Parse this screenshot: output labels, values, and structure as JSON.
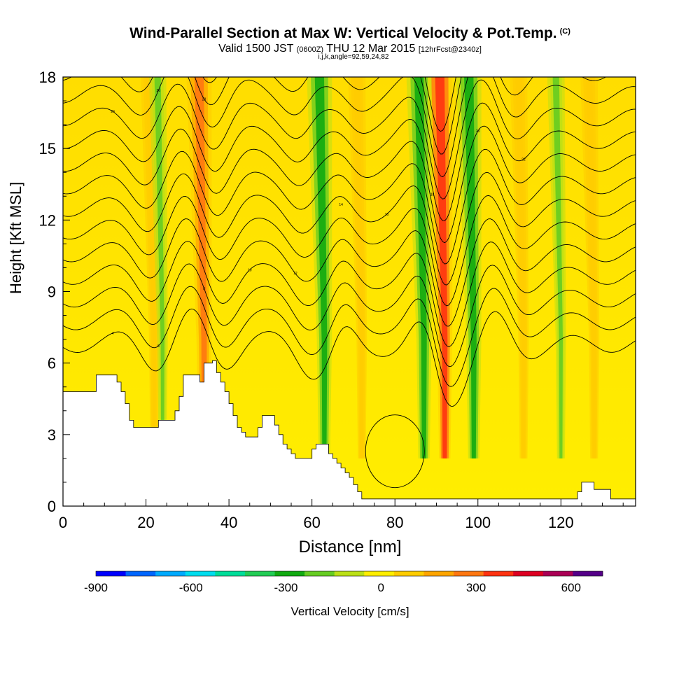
{
  "header": {
    "title": "Wind-Parallel Section at Max W: Vertical Velocity & Pot.Temp.",
    "copyright": "(C)",
    "valid_prefix": "Valid 1500 JST",
    "valid_utc": "(0600Z)",
    "valid_date": "THU 12 Mar 2015",
    "forecast": "[12hrFcst@2340z]",
    "indices": "i,j,k,angle=92,59,24,82"
  },
  "chart_data": {
    "type": "heatmap",
    "xlabel": "Distance [nm]",
    "ylabel": "Height [Kft MSL]",
    "xlim": [
      0,
      138
    ],
    "ylim": [
      0,
      18
    ],
    "xticks": [
      0,
      20,
      40,
      60,
      80,
      100,
      120
    ],
    "yticks": [
      0,
      3,
      6,
      9,
      12,
      15,
      18
    ],
    "colorbar": {
      "label": "Vertical Velocity [cm/s]",
      "ticks": [
        -900,
        -600,
        -300,
        0,
        300,
        600
      ],
      "min": -900,
      "max": 700,
      "step": 100,
      "colors": [
        "#0000ff",
        "#0066ff",
        "#00aaff",
        "#00ddee",
        "#00dd99",
        "#22cc55",
        "#11aa11",
        "#66cc22",
        "#bbe016",
        "#ffee00",
        "#ffcc00",
        "#ffa500",
        "#ff7711",
        "#ff3311",
        "#dd0022",
        "#aa0055",
        "#550088"
      ]
    },
    "terrain_kft": [
      [
        0,
        4.8
      ],
      [
        6,
        4.8
      ],
      [
        8,
        5.5
      ],
      [
        12,
        5.5
      ],
      [
        13,
        5.2
      ],
      [
        14,
        4.8
      ],
      [
        15,
        4.3
      ],
      [
        16,
        3.6
      ],
      [
        17,
        3.3
      ],
      [
        22,
        3.3
      ],
      [
        23,
        3.6
      ],
      [
        26,
        3.6
      ],
      [
        27,
        4.0
      ],
      [
        28,
        4.6
      ],
      [
        29,
        5.5
      ],
      [
        32,
        5.5
      ],
      [
        33,
        5.2
      ],
      [
        34,
        6.0
      ],
      [
        36,
        6.1
      ],
      [
        37,
        5.6
      ],
      [
        38,
        5.2
      ],
      [
        39,
        4.8
      ],
      [
        40,
        4.3
      ],
      [
        41,
        3.8
      ],
      [
        42,
        3.3
      ],
      [
        43,
        3.1
      ],
      [
        44,
        2.9
      ],
      [
        46,
        2.9
      ],
      [
        47,
        3.3
      ],
      [
        48,
        3.8
      ],
      [
        50,
        3.8
      ],
      [
        51,
        3.4
      ],
      [
        52,
        3.0
      ],
      [
        53,
        2.6
      ],
      [
        54,
        2.4
      ],
      [
        55,
        2.2
      ],
      [
        56,
        2.0
      ],
      [
        59,
        2.0
      ],
      [
        60,
        2.4
      ],
      [
        61,
        2.6
      ],
      [
        63,
        2.6
      ],
      [
        64,
        2.2
      ],
      [
        65,
        2.0
      ],
      [
        66,
        1.8
      ],
      [
        67,
        1.6
      ],
      [
        68,
        1.4
      ],
      [
        69,
        1.2
      ],
      [
        70,
        0.9
      ],
      [
        71,
        0.6
      ],
      [
        72,
        0.3
      ],
      [
        123,
        0.3
      ],
      [
        124,
        0.6
      ],
      [
        125,
        1.0
      ],
      [
        127,
        1.0
      ],
      [
        128,
        0.7
      ],
      [
        131,
        0.7
      ],
      [
        132,
        0.3
      ],
      [
        138,
        0.3
      ]
    ],
    "updraft_bands": [
      {
        "x": 34,
        "w_cms": 300
      },
      {
        "x": 92,
        "w_cms": 400
      },
      {
        "x": 22,
        "w_cms": 100
      },
      {
        "x": 72,
        "w_cms": 100
      },
      {
        "x": 111,
        "w_cms": 100
      },
      {
        "x": 128,
        "w_cms": 100
      }
    ],
    "downdraft_bands": [
      {
        "x": 24,
        "w_cms": -200
      },
      {
        "x": 63,
        "w_cms": -300
      },
      {
        "x": 87,
        "w_cms": -300
      },
      {
        "x": 99,
        "w_cms": -300
      },
      {
        "x": 120,
        "w_cms": -200
      }
    ],
    "theta_isentropes_C": [
      4,
      6,
      8,
      10,
      12,
      14,
      16,
      18,
      20,
      22,
      24,
      26,
      28,
      30
    ],
    "isentrope_base_kft": 6.8,
    "isentrope_spacing_kft": 0.95
  }
}
